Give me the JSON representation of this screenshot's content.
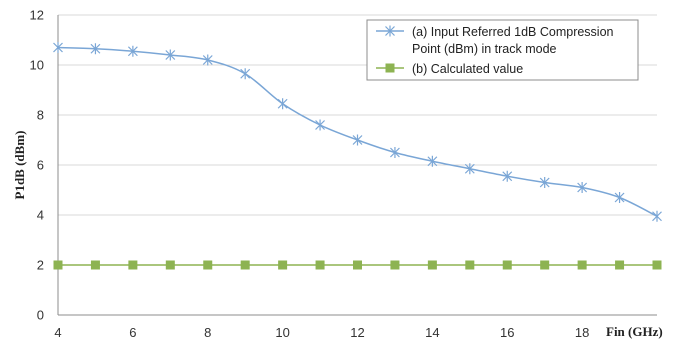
{
  "chart_data": {
    "type": "line",
    "xlabel": "Fin (GHz)",
    "ylabel": "P1dB  (dBm)",
    "xlim": [
      4,
      20
    ],
    "ylim": [
      0,
      12
    ],
    "x_ticks": [
      "4",
      "6",
      "8",
      "10",
      "12",
      "14",
      "16",
      "18"
    ],
    "y_ticks": [
      "0",
      "2",
      "4",
      "6",
      "8",
      "10",
      "12"
    ],
    "grid": "horizontal",
    "legend_position": "top-right",
    "x": [
      4,
      5,
      6,
      7,
      8,
      9,
      10,
      11,
      12,
      13,
      14,
      15,
      16,
      17,
      18,
      19,
      20
    ],
    "series": [
      {
        "legend_lines": [
          "(a) Input Referred  1dB Compression",
          "Point (dBm) in track mode"
        ],
        "color": "#7aa6d6",
        "marker": "asterisk",
        "values": [
          10.7,
          10.65,
          10.55,
          10.4,
          10.2,
          9.65,
          8.45,
          7.6,
          7.0,
          6.5,
          6.15,
          5.85,
          5.55,
          5.3,
          5.1,
          4.7,
          3.95
        ]
      },
      {
        "legend_lines": [
          "(b) Calculated  value"
        ],
        "color": "#8db352",
        "marker": "square",
        "values": [
          2,
          2,
          2,
          2,
          2,
          2,
          2,
          2,
          2,
          2,
          2,
          2,
          2,
          2,
          2,
          2,
          2
        ]
      }
    ]
  }
}
